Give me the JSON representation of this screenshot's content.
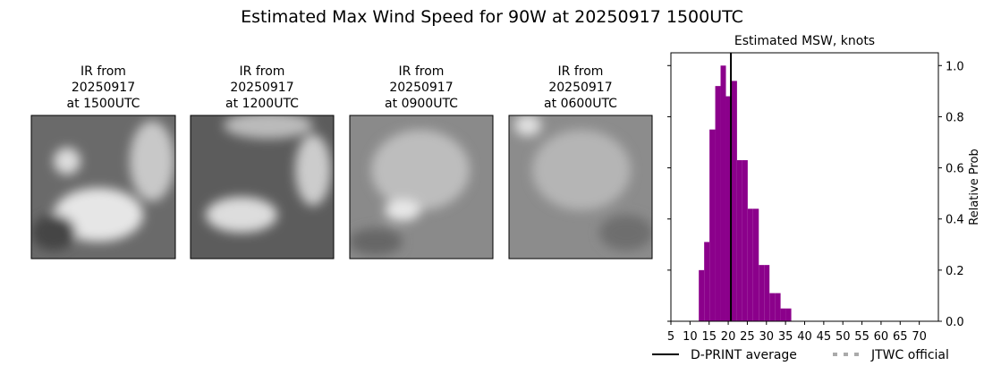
{
  "title": "Estimated Max Wind Speed for 90W at 20250917 1500UTC",
  "panels": [
    {
      "line1": "IR from",
      "date": "20250917",
      "time": "at 1500UTC"
    },
    {
      "line1": "IR from",
      "date": "20250917",
      "time": "at 1200UTC"
    },
    {
      "line1": "IR from",
      "date": "20250917",
      "time": "at 0900UTC"
    },
    {
      "line1": "IR from",
      "date": "20250917",
      "time": "at 0600UTC"
    }
  ],
  "chart_data": {
    "type": "histogram",
    "title": "Estimated MSW, knots",
    "y_label": "Relative Prob",
    "bins": [
      12.3,
      13.7,
      15.1,
      16.6,
      18.0,
      19.4,
      20.8,
      22.3,
      23.7,
      25.1,
      26.5,
      28.0,
      29.4,
      30.8,
      32.2,
      33.7,
      35.1,
      36.5
    ],
    "values": [
      0.2,
      0.31,
      0.75,
      0.92,
      1.0,
      0.88,
      0.94,
      0.63,
      0.63,
      0.44,
      0.44,
      0.22,
      0.22,
      0.11,
      0.11,
      0.05,
      0.05
    ],
    "color": "#8b008b",
    "xlim": [
      5,
      75
    ],
    "xticks": [
      5,
      10,
      15,
      20,
      25,
      30,
      35,
      40,
      45,
      50,
      55,
      60,
      65,
      70
    ],
    "ylim": [
      0,
      1.05
    ],
    "yticks": [
      {
        "value": 0,
        "label": "0.0"
      },
      0.2,
      0.4,
      0.6,
      0.8,
      {
        "value": 1,
        "label": "1.0"
      }
    ],
    "average": {
      "name": "D-PRINT average",
      "value": 20.7,
      "color": "#000000"
    },
    "official": {
      "name": "JTWC official",
      "color": "#aaaaaa"
    }
  }
}
